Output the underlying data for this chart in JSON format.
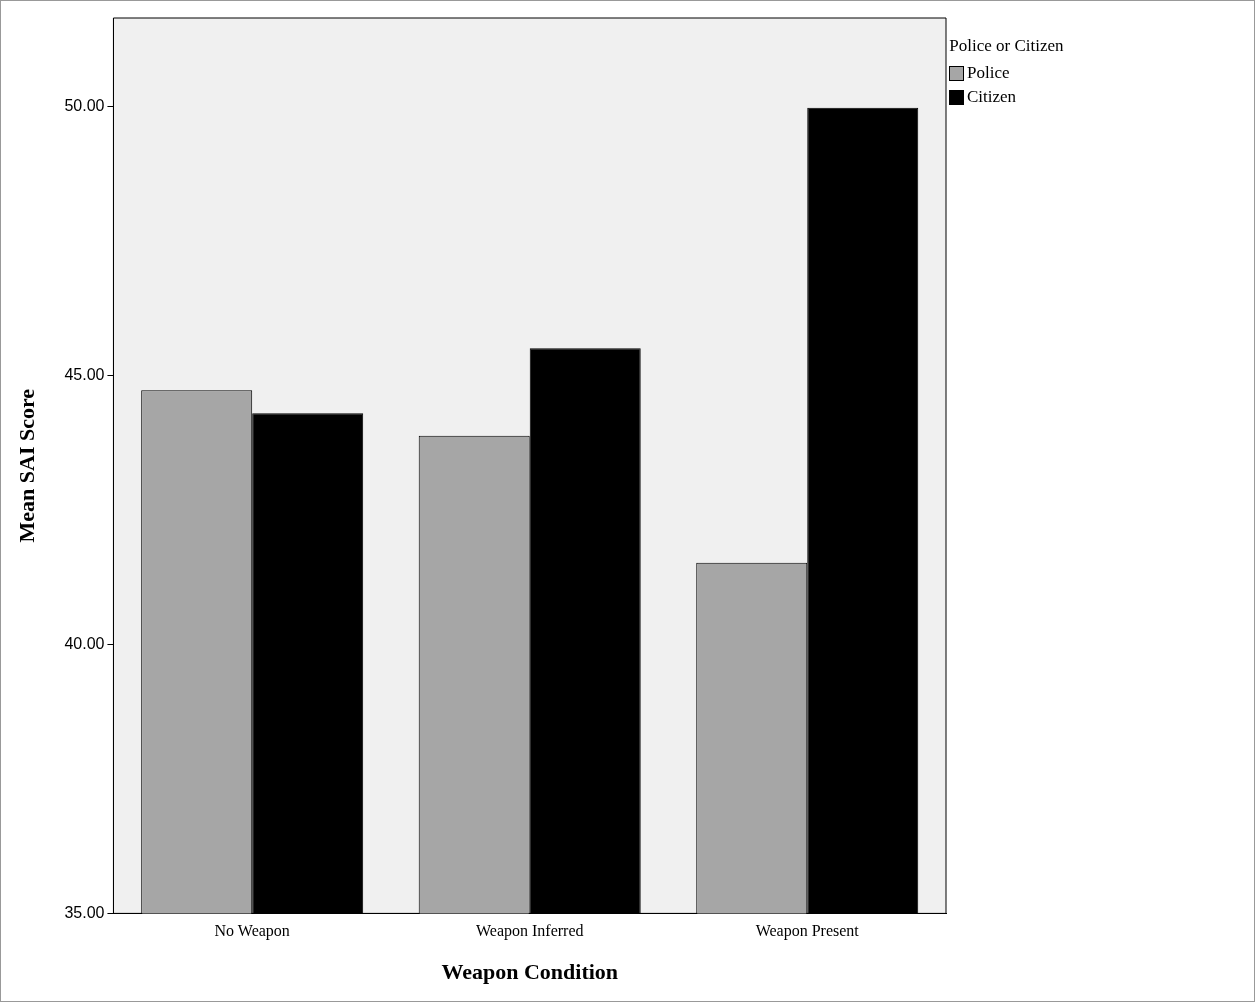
{
  "chart_data": {
    "type": "bar",
    "xlabel": "Weapon Condition",
    "ylabel": "Mean SAI Score",
    "legend_title": "Police or Citizen",
    "categories": [
      "No Weapon",
      "Weapon Inferred",
      "Weapon Present"
    ],
    "series": [
      {
        "name": "Police",
        "color": "#a6a6a6",
        "values": [
          44.73,
          43.88,
          41.52
        ]
      },
      {
        "name": "Citizen",
        "color": "#000000",
        "values": [
          44.3,
          45.51,
          49.98
        ]
      }
    ],
    "ylim": [
      35,
      51.65
    ],
    "yticks": [
      {
        "value": 35,
        "label": "35.00"
      },
      {
        "value": 40,
        "label": "40.00"
      },
      {
        "value": 45,
        "label": "45.00"
      },
      {
        "value": 50,
        "label": "50.00"
      }
    ],
    "grid": false,
    "legend": "top right"
  }
}
